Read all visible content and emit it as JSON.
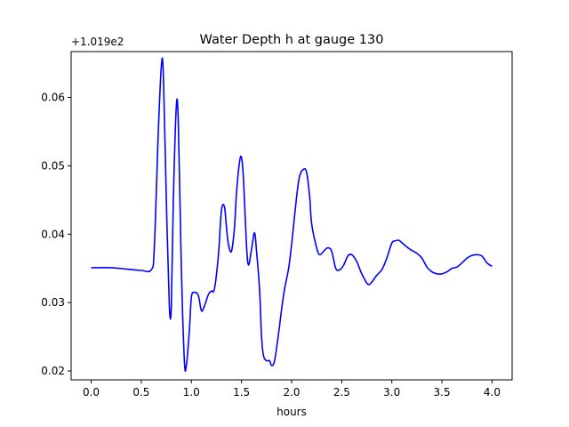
{
  "chart_data": {
    "type": "line",
    "title": "Water Depth h at gauge 130",
    "xlabel": "hours",
    "ylabel": "",
    "offset_text": "+1.019e2",
    "xlim": [
      -0.2,
      4.2
    ],
    "ylim": [
      0.0187,
      0.0667
    ],
    "xticks": [
      0.0,
      0.5,
      1.0,
      1.5,
      2.0,
      2.5,
      3.0,
      3.5,
      4.0
    ],
    "xtick_labels": [
      "0.0",
      "0.5",
      "1.0",
      "1.5",
      "2.0",
      "2.5",
      "3.0",
      "3.5",
      "4.0"
    ],
    "yticks": [
      0.02,
      0.03,
      0.04,
      0.05,
      0.06
    ],
    "ytick_labels": [
      "0.02",
      "0.03",
      "0.04",
      "0.05",
      "0.06"
    ],
    "grid": false,
    "legend": "none",
    "series": [
      {
        "color": "#0000ff",
        "x": [
          0.0,
          0.2,
          0.35,
          0.5,
          0.6,
          0.63,
          0.67,
          0.7,
          0.72,
          0.75,
          0.78,
          0.8,
          0.82,
          0.85,
          0.87,
          0.9,
          0.93,
          0.95,
          0.98,
          1.0,
          1.03,
          1.07,
          1.1,
          1.13,
          1.17,
          1.2,
          1.23,
          1.27,
          1.3,
          1.33,
          1.35,
          1.37,
          1.4,
          1.43,
          1.45,
          1.48,
          1.5,
          1.52,
          1.55,
          1.57,
          1.6,
          1.63,
          1.65,
          1.68,
          1.7,
          1.72,
          1.75,
          1.78,
          1.8,
          1.83,
          1.87,
          1.9,
          1.93,
          1.97,
          2.0,
          2.05,
          2.08,
          2.12,
          2.15,
          2.18,
          2.2,
          2.25,
          2.28,
          2.32,
          2.36,
          2.4,
          2.44,
          2.48,
          2.52,
          2.56,
          2.6,
          2.65,
          2.7,
          2.76,
          2.8,
          2.85,
          2.9,
          2.95,
          3.0,
          3.03,
          3.07,
          3.12,
          3.18,
          3.25,
          3.3,
          3.35,
          3.4,
          3.45,
          3.5,
          3.55,
          3.6,
          3.65,
          3.7,
          3.75,
          3.8,
          3.85,
          3.9,
          3.95,
          4.0
        ],
        "y": [
          0.0351,
          0.0351,
          0.0349,
          0.0347,
          0.0348,
          0.038,
          0.055,
          0.0645,
          0.0635,
          0.045,
          0.0295,
          0.0295,
          0.045,
          0.0588,
          0.056,
          0.035,
          0.0215,
          0.0208,
          0.026,
          0.0308,
          0.0315,
          0.031,
          0.0288,
          0.0295,
          0.0312,
          0.0317,
          0.032,
          0.037,
          0.0435,
          0.044,
          0.041,
          0.0385,
          0.0375,
          0.041,
          0.046,
          0.0505,
          0.0512,
          0.048,
          0.0383,
          0.0355,
          0.0378,
          0.0402,
          0.0375,
          0.032,
          0.025,
          0.0222,
          0.0215,
          0.0215,
          0.0208,
          0.0215,
          0.0255,
          0.029,
          0.032,
          0.035,
          0.0385,
          0.0455,
          0.0485,
          0.0495,
          0.049,
          0.0455,
          0.0415,
          0.038,
          0.037,
          0.0375,
          0.038,
          0.0375,
          0.035,
          0.0348,
          0.0355,
          0.0368,
          0.037,
          0.036,
          0.0342,
          0.0327,
          0.033,
          0.034,
          0.0348,
          0.0365,
          0.0387,
          0.039,
          0.0391,
          0.0385,
          0.0378,
          0.0372,
          0.0365,
          0.0352,
          0.0345,
          0.0342,
          0.0342,
          0.0345,
          0.035,
          0.0352,
          0.0358,
          0.0365,
          0.0369,
          0.037,
          0.0368,
          0.0358,
          0.0353
        ]
      }
    ]
  }
}
